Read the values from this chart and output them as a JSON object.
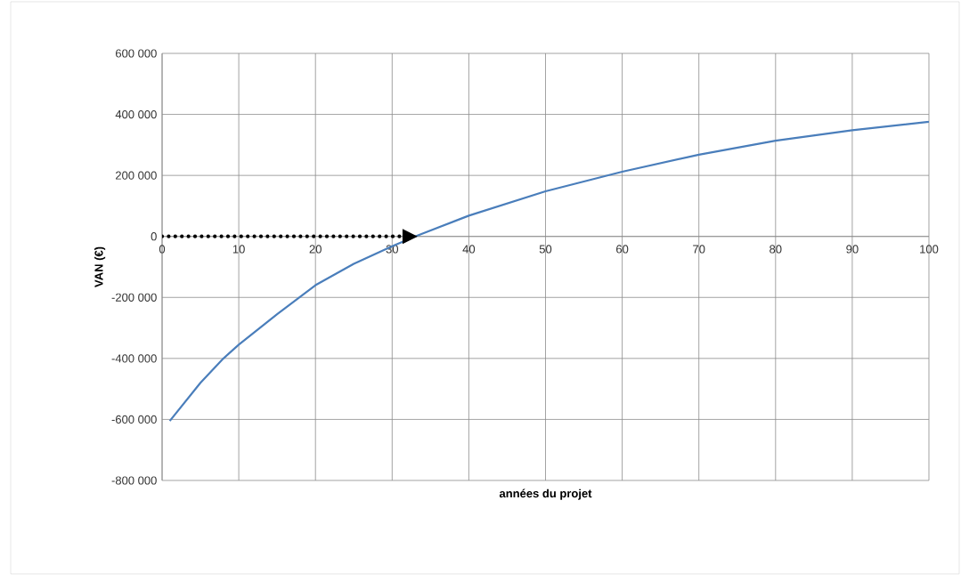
{
  "chart_data": {
    "type": "line",
    "xlabel": "années du projet",
    "ylabel": "VAN (€)",
    "series": [
      {
        "color": "#4a7ebb",
        "x": [
          1,
          5,
          8,
          10,
          15,
          20,
          25,
          30,
          33,
          40,
          50,
          60,
          70,
          80,
          90,
          100
        ],
        "values": [
          -605000,
          -480000,
          -400000,
          -355000,
          -255000,
          -160000,
          -90000,
          -32000,
          0,
          68000,
          148000,
          212000,
          268000,
          314000,
          348000,
          376000
        ]
      },
      {
        "color": "#000000",
        "line_style": "dotted",
        "x": [
          0,
          31
        ],
        "values": [
          0,
          0
        ]
      }
    ],
    "xlim": [
      0,
      100
    ],
    "xticks": [
      0,
      10,
      20,
      30,
      40,
      50,
      60,
      70,
      80,
      90,
      100
    ],
    "ylim": [
      -800000,
      600000
    ],
    "yticks": [
      {
        "value": -800000,
        "label": "-800 000"
      },
      {
        "value": -600000,
        "label": "-600 000"
      },
      {
        "value": -400000,
        "label": "-400 000"
      },
      {
        "value": -200000,
        "label": "-200 000"
      },
      0,
      {
        "value": 200000,
        "label": "200 000"
      },
      {
        "value": 400000,
        "label": "400 000"
      },
      {
        "value": 600000,
        "label": "600 000"
      }
    ],
    "grid": true
  }
}
